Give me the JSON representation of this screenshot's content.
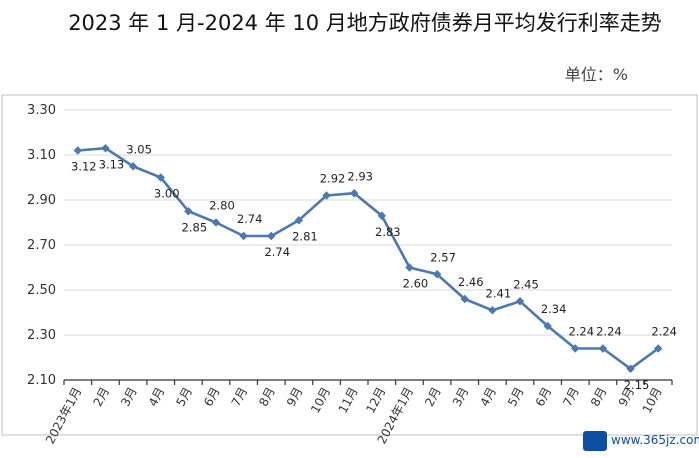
{
  "chart_data": {
    "type": "line",
    "title": "2023 年 1 月-2024 年 10 月地方政府债券月平均发行利率走势",
    "unit_label": "单位：%",
    "categories": [
      "2023年1月",
      "2月",
      "3月",
      "4月",
      "5月",
      "6月",
      "7月",
      "8月",
      "9月",
      "10月",
      "11月",
      "12月",
      "2024年1月",
      "2月",
      "3月",
      "4月",
      "5月",
      "6月",
      "7月",
      "8月",
      "9月",
      "10月"
    ],
    "series": [
      {
        "values": [
          3.12,
          3.13,
          3.05,
          3.0,
          2.85,
          2.8,
          2.74,
          2.74,
          2.81,
          2.92,
          2.93,
          2.83,
          2.6,
          2.57,
          2.46,
          2.41,
          2.45,
          2.34,
          2.24,
          2.24,
          2.15,
          2.24
        ]
      }
    ],
    "data_labels": [
      "3.12",
      "3.13",
      "3.05",
      "3.00",
      "2.85",
      "2.80",
      "2.74",
      "2.74",
      "2.81",
      "2.92",
      "2.93",
      "2.83",
      "2.60",
      "2.57",
      "2.46",
      "2.41",
      "2.45",
      "2.34",
      "2.24",
      "2.24",
      "2.15",
      "2.24"
    ],
    "ylim": [
      2.1,
      3.3
    ],
    "yticks": [
      "2.10",
      "2.30",
      "2.50",
      "2.70",
      "2.90",
      "3.10",
      "3.30"
    ],
    "grid": true,
    "colors": {
      "line": "#4a79b0",
      "marker": "#4a79b0"
    },
    "xlabel": "",
    "ylabel": ""
  },
  "watermark": {
    "text": "www.365jz.com"
  }
}
